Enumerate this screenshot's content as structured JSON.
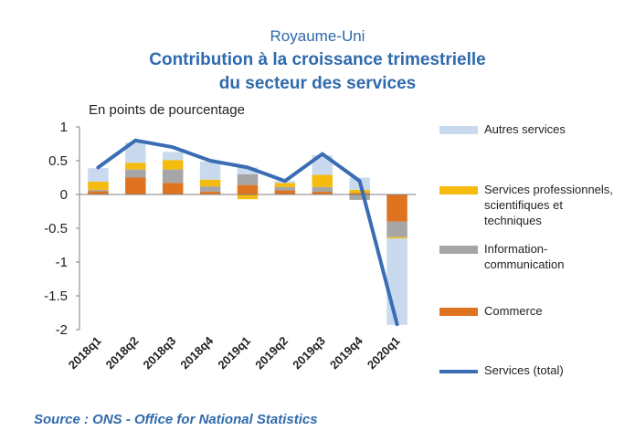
{
  "title": {
    "country": "Royaume-Uni",
    "line1": "Contribution à la croissance trimestrielle",
    "line2": "du secteur des services"
  },
  "units": "En points de pourcentage",
  "source": "Source :  ONS - Office for National Statistics",
  "chart_data": {
    "type": "bar",
    "stacked": true,
    "categories": [
      "2018q1",
      "2018q2",
      "2018q3",
      "2018q4",
      "2019q1",
      "2019q2",
      "2019q3",
      "2019q4",
      "2020q1"
    ],
    "ylim": [
      -2,
      1
    ],
    "yticks": [
      "1",
      "0.5",
      "0",
      "-0.5",
      "-1",
      "-1.5",
      "-2"
    ],
    "ytick_values": [
      1,
      0.5,
      0,
      -0.5,
      -1,
      -1.5,
      -2
    ],
    "grid": false,
    "legend_position": "right",
    "series": [
      {
        "name": "Commerce",
        "color": "#e07320",
        "values": [
          0.05,
          0.25,
          0.17,
          0.04,
          0.14,
          0.06,
          0.04,
          0.02,
          -0.4
        ]
      },
      {
        "name": "Information-\ncommunication",
        "color": "#a6a6a6",
        "values": [
          0.02,
          0.12,
          0.2,
          0.08,
          0.16,
          0.05,
          0.07,
          -0.08,
          -0.23
        ]
      },
      {
        "name": "Services professionnels,\nscientifiques et\ntechniques",
        "color": "#f5bb0f",
        "values": [
          0.12,
          0.1,
          0.14,
          0.1,
          -0.07,
          0.06,
          0.18,
          0.05,
          -0.02
        ]
      },
      {
        "name": "Autres services",
        "color": "#c9daef",
        "values": [
          0.2,
          0.3,
          0.12,
          0.27,
          0.1,
          0.03,
          0.29,
          0.18,
          -1.28
        ]
      }
    ],
    "line_series": {
      "name": "Services (total)",
      "color": "#3a6db4",
      "values": [
        0.4,
        0.8,
        0.7,
        0.5,
        0.4,
        0.2,
        0.6,
        0.2,
        -1.92
      ]
    }
  }
}
